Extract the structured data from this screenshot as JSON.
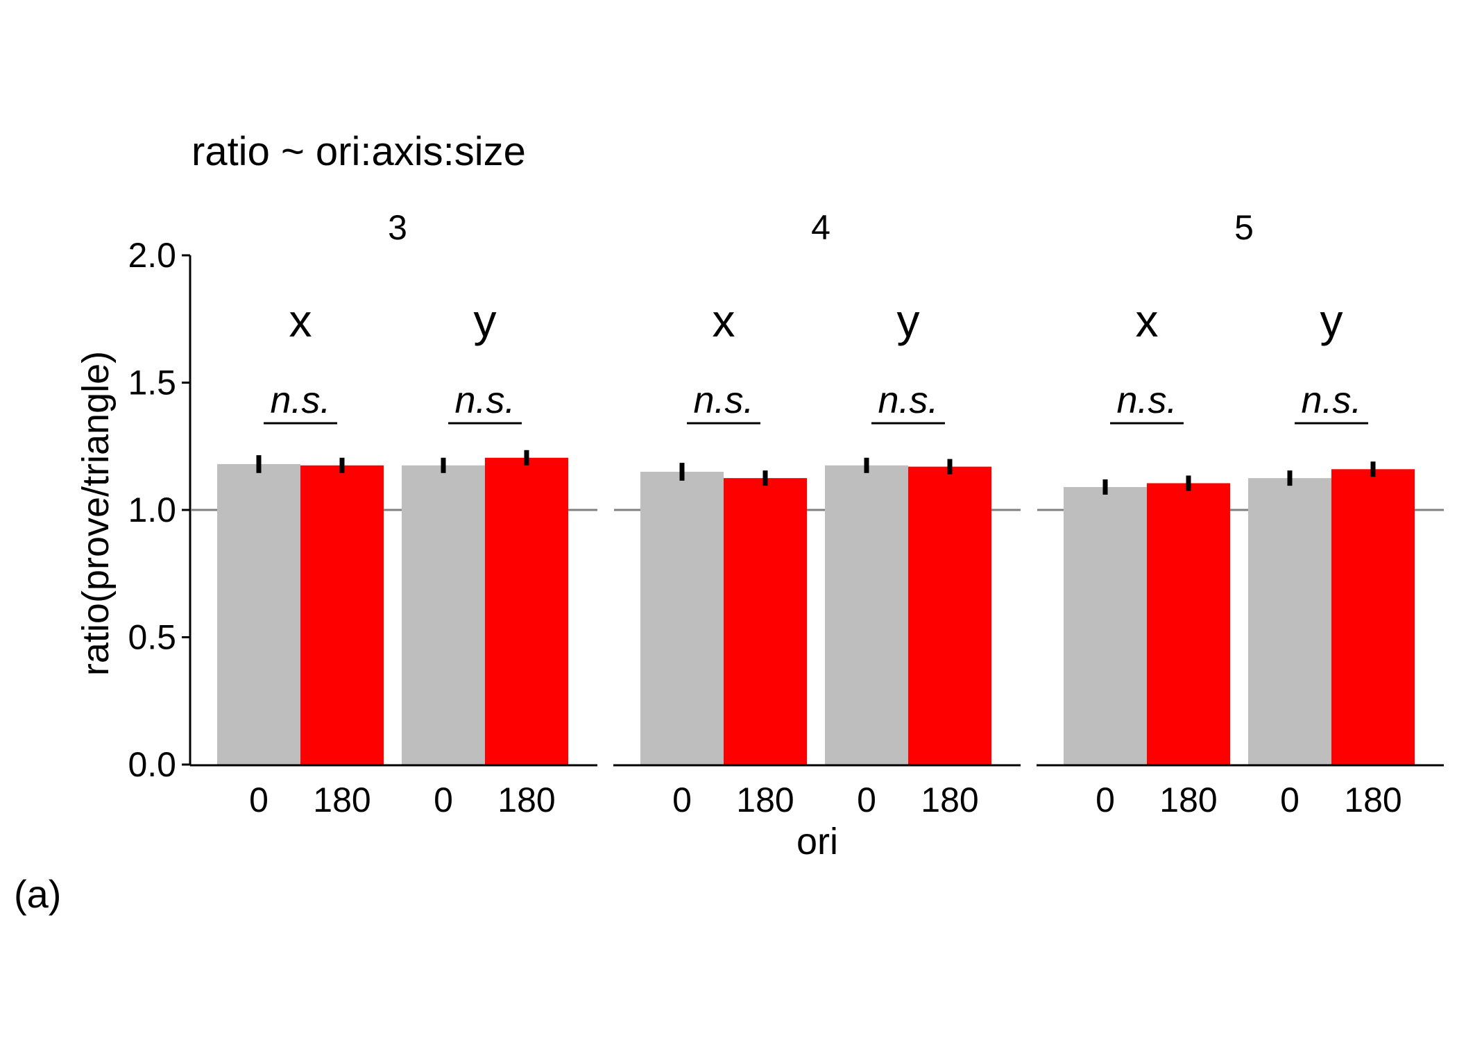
{
  "chart_data": {
    "type": "bar",
    "title": "ratio ~ ori:axis:size",
    "xlabel": "ori",
    "ylabel": "ratio(prove/triangle)",
    "ylim": [
      0,
      2
    ],
    "yticks": [
      "0.0",
      "0.5",
      "1.0",
      "1.5",
      "2.0"
    ],
    "reference_line": 1.0,
    "panel_label": "(a)",
    "colors": {
      "0": "#bebebe",
      "180": "#ff0000",
      "reference": "#808080"
    },
    "facets": [
      {
        "size": "3",
        "groups": [
          {
            "axis": "x",
            "significance": "n.s.",
            "bars": [
              {
                "ori": "0",
                "value": 1.18,
                "err": 0.035
              },
              {
                "ori": "180",
                "value": 1.175,
                "err": 0.03
              }
            ]
          },
          {
            "axis": "y",
            "significance": "n.s.",
            "bars": [
              {
                "ori": "0",
                "value": 1.175,
                "err": 0.03
              },
              {
                "ori": "180",
                "value": 1.205,
                "err": 0.03
              }
            ]
          }
        ]
      },
      {
        "size": "4",
        "groups": [
          {
            "axis": "x",
            "significance": "n.s.",
            "bars": [
              {
                "ori": "0",
                "value": 1.15,
                "err": 0.035
              },
              {
                "ori": "180",
                "value": 1.125,
                "err": 0.03
              }
            ]
          },
          {
            "axis": "y",
            "significance": "n.s.",
            "bars": [
              {
                "ori": "0",
                "value": 1.175,
                "err": 0.03
              },
              {
                "ori": "180",
                "value": 1.17,
                "err": 0.03
              }
            ]
          }
        ]
      },
      {
        "size": "5",
        "groups": [
          {
            "axis": "x",
            "significance": "n.s.",
            "bars": [
              {
                "ori": "0",
                "value": 1.09,
                "err": 0.03
              },
              {
                "ori": "180",
                "value": 1.105,
                "err": 0.03
              }
            ]
          },
          {
            "axis": "y",
            "significance": "n.s.",
            "bars": [
              {
                "ori": "0",
                "value": 1.125,
                "err": 0.03
              },
              {
                "ori": "180",
                "value": 1.16,
                "err": 0.03
              }
            ]
          }
        ]
      }
    ]
  }
}
